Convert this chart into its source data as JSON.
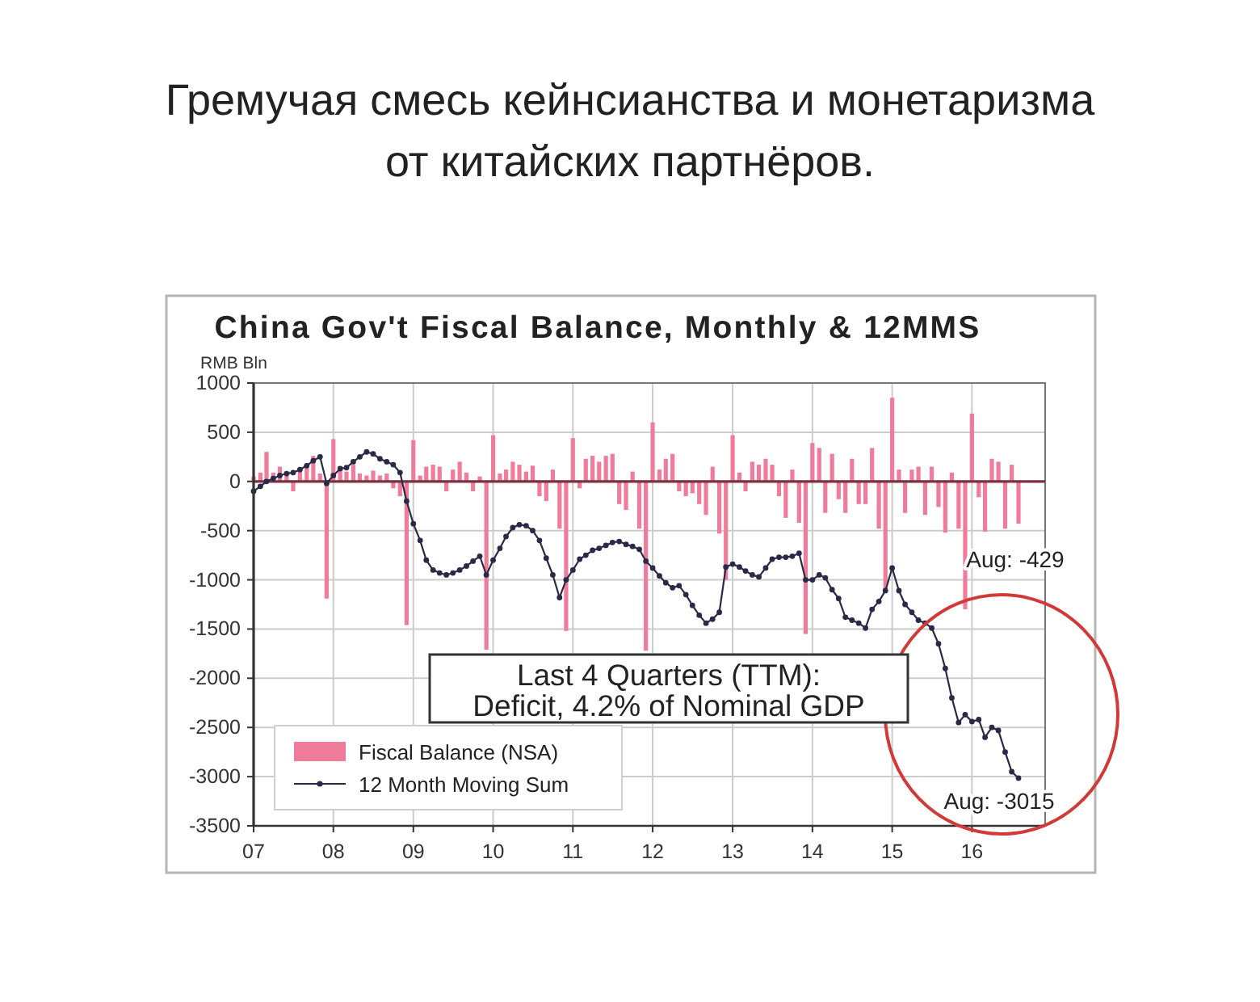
{
  "chart_data": {
    "type": "bar",
    "title": "Гремучая смесь кейнсианства и монетаризма\nот китайских партнёров.",
    "subtitle": "China Gov't Fiscal Balance, Monthly & 12MMS",
    "ylabel": "RMB Bln",
    "x": [
      "2007-01",
      "2007-02",
      "2007-03",
      "2007-04",
      "2007-05",
      "2007-06",
      "2007-07",
      "2007-08",
      "2007-09",
      "2007-10",
      "2007-11",
      "2007-12",
      "2008-01",
      "2008-02",
      "2008-03",
      "2008-04",
      "2008-05",
      "2008-06",
      "2008-07",
      "2008-08",
      "2008-09",
      "2008-10",
      "2008-11",
      "2008-12",
      "2009-01",
      "2009-02",
      "2009-03",
      "2009-04",
      "2009-05",
      "2009-06",
      "2009-07",
      "2009-08",
      "2009-09",
      "2009-10",
      "2009-11",
      "2009-12",
      "2010-01",
      "2010-02",
      "2010-03",
      "2010-04",
      "2010-05",
      "2010-06",
      "2010-07",
      "2010-08",
      "2010-09",
      "2010-10",
      "2010-11",
      "2010-12",
      "2011-01",
      "2011-02",
      "2011-03",
      "2011-04",
      "2011-05",
      "2011-06",
      "2011-07",
      "2011-08",
      "2011-09",
      "2011-10",
      "2011-11",
      "2011-12",
      "2012-01",
      "2012-02",
      "2012-03",
      "2012-04",
      "2012-05",
      "2012-06",
      "2012-07",
      "2012-08",
      "2012-09",
      "2012-10",
      "2012-11",
      "2012-12",
      "2013-01",
      "2013-02",
      "2013-03",
      "2013-04",
      "2013-05",
      "2013-06",
      "2013-07",
      "2013-08",
      "2013-09",
      "2013-10",
      "2013-11",
      "2013-12",
      "2014-01",
      "2014-02",
      "2014-03",
      "2014-04",
      "2014-05",
      "2014-06",
      "2014-07",
      "2014-08",
      "2014-09",
      "2014-10",
      "2014-11",
      "2014-12",
      "2015-01",
      "2015-02",
      "2015-03",
      "2015-04",
      "2015-05",
      "2015-06",
      "2015-07",
      "2015-08",
      "2015-09",
      "2015-10",
      "2015-11",
      "2015-12",
      "2016-01",
      "2016-02",
      "2016-03",
      "2016-04",
      "2016-05",
      "2016-06",
      "2016-07",
      "2016-08"
    ],
    "xlim": [
      "2007-01",
      "2016-12"
    ],
    "xticks": [
      {
        "value": "2007-01",
        "label": "07"
      },
      {
        "value": "2008-01",
        "label": "08"
      },
      {
        "value": "2009-01",
        "label": "09"
      },
      {
        "value": "2010-01",
        "label": "10"
      },
      {
        "value": "2011-01",
        "label": "11"
      },
      {
        "value": "2012-01",
        "label": "12"
      },
      {
        "value": "2013-01",
        "label": "13"
      },
      {
        "value": "2014-01",
        "label": "14"
      },
      {
        "value": "2015-01",
        "label": "15"
      },
      {
        "value": "2016-01",
        "label": "16"
      }
    ],
    "ylim": [
      -3500,
      1000
    ],
    "yticks": [
      1000,
      500,
      0,
      -500,
      -1000,
      -1500,
      -2000,
      -2500,
      -3000,
      -3500
    ],
    "series": [
      {
        "name": "Fiscal Balance (NSA)",
        "color": "#f07c9c",
        "values": [
          50,
          90,
          300,
          90,
          150,
          60,
          -100,
          120,
          170,
          260,
          80,
          -1190,
          430,
          150,
          100,
          170,
          80,
          60,
          110,
          60,
          80,
          -70,
          -150,
          -1460,
          420,
          60,
          150,
          170,
          150,
          -100,
          120,
          200,
          90,
          -100,
          50,
          -1710,
          470,
          80,
          120,
          200,
          170,
          100,
          160,
          -150,
          -200,
          120,
          -480,
          -1520,
          440,
          -70,
          230,
          260,
          200,
          260,
          280,
          -230,
          -290,
          100,
          -480,
          -1720,
          600,
          120,
          230,
          280,
          -100,
          -150,
          -120,
          -230,
          -340,
          150,
          -530,
          -1000,
          470,
          90,
          -100,
          200,
          170,
          230,
          170,
          -150,
          -370,
          120,
          -420,
          -1550,
          390,
          340,
          -320,
          280,
          -180,
          -320,
          230,
          -230,
          -230,
          340,
          -480,
          -1100,
          850,
          120,
          -320,
          120,
          150,
          -340,
          150,
          -260,
          -520,
          90,
          -480,
          -1300,
          690,
          -160,
          -510,
          230,
          200,
          -480,
          170,
          -429
        ]
      },
      {
        "name": "12 Month Moving Sum",
        "type": "line",
        "color": "#2a2a48",
        "values": [
          -100,
          -50,
          0,
          30,
          60,
          80,
          90,
          120,
          160,
          210,
          250,
          -20,
          60,
          130,
          140,
          200,
          250,
          300,
          280,
          230,
          200,
          170,
          90,
          -200,
          -430,
          -600,
          -800,
          -900,
          -930,
          -950,
          -930,
          -900,
          -860,
          -810,
          -760,
          -950,
          -800,
          -680,
          -560,
          -470,
          -440,
          -450,
          -500,
          -600,
          -780,
          -950,
          -1180,
          -1000,
          -900,
          -790,
          -750,
          -700,
          -680,
          -650,
          -620,
          -610,
          -640,
          -660,
          -690,
          -810,
          -880,
          -960,
          -1030,
          -1080,
          -1060,
          -1150,
          -1260,
          -1360,
          -1440,
          -1400,
          -1330,
          -870,
          -840,
          -870,
          -910,
          -950,
          -970,
          -880,
          -790,
          -770,
          -770,
          -760,
          -730,
          -1000,
          -1000,
          -950,
          -980,
          -1100,
          -1190,
          -1380,
          -1410,
          -1440,
          -1490,
          -1300,
          -1220,
          -1110,
          -880,
          -1110,
          -1250,
          -1330,
          -1410,
          -1440,
          -1490,
          -1650,
          -1900,
          -2200,
          -2450,
          -2370,
          -2440,
          -2420,
          -2600,
          -2500,
          -2530,
          -2750,
          -2950,
          -3015
        ]
      }
    ],
    "grid": true,
    "legend": "bottom left",
    "marker": "circle",
    "line_style": "solid",
    "ref_lines": [
      {
        "axis": "y",
        "value": 0,
        "color": "#7a3040"
      }
    ],
    "annotations": [
      {
        "text": "Aug: -429",
        "x": "2016-08",
        "y": -429
      },
      {
        "text": "Aug: -3015",
        "x": "2016-08",
        "y": -3015
      },
      "Last 4 Quarters (TTM):\nDeficit, 4.2% of Nominal GDP"
    ]
  }
}
